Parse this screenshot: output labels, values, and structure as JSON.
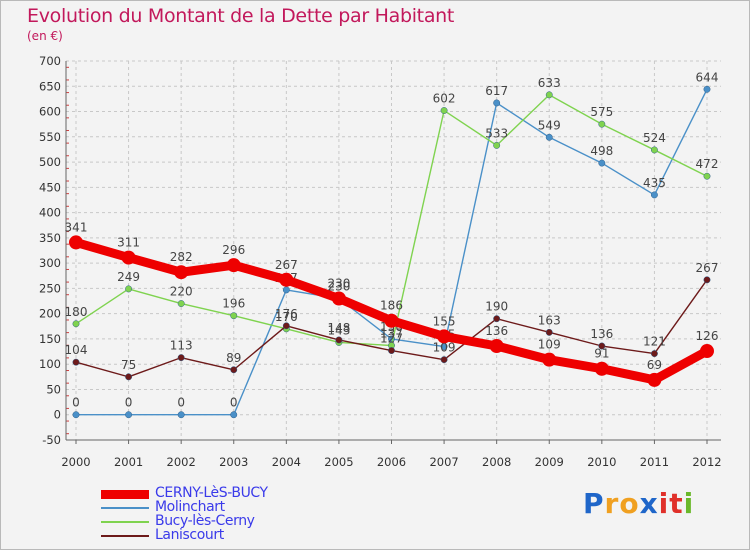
{
  "header": {
    "title": "Evolution du Montant de la Dette par Habitant",
    "unit": "(en €)"
  },
  "brand": {
    "text": "Proxiti",
    "letters": [
      "P",
      "r",
      "o",
      "x",
      "i",
      "t",
      "i"
    ],
    "colors": [
      "#1f66c9",
      "#f0a020",
      "#f0a020",
      "#1f66c9",
      "#e0302a",
      "#e0302a",
      "#6ab82a"
    ]
  },
  "chart_data": {
    "type": "line",
    "title": "Evolution du Montant de la Dette par Habitant",
    "ylabel": "(en €)",
    "xlabel": "",
    "categories": [
      "2000",
      "2001",
      "2002",
      "2003",
      "2004",
      "2005",
      "2006",
      "2007",
      "2008",
      "2009",
      "2010",
      "2011",
      "2012"
    ],
    "ylim": [
      -50,
      700
    ],
    "yticks": [
      -50,
      0,
      50,
      100,
      150,
      200,
      250,
      300,
      350,
      400,
      450,
      500,
      550,
      600,
      650,
      700
    ],
    "grid": true,
    "legend_position": "bottom-left",
    "series": [
      {
        "name": "CERNY-LèS-BUCY",
        "color": "#ee0000",
        "values": [
          341,
          311,
          282,
          296,
          267,
          230,
          186,
          155,
          136,
          109,
          91,
          69,
          126
        ]
      },
      {
        "name": "Molinchart",
        "color": "#4a90c8",
        "values": [
          0,
          0,
          0,
          0,
          247,
          230,
          150,
          135,
          617,
          549,
          498,
          435,
          644
        ]
      },
      {
        "name": "Bucy-lès-Cerny",
        "color": "#7fd34f",
        "values": [
          180,
          249,
          220,
          196,
          170,
          143,
          137,
          602,
          533,
          633,
          575,
          524,
          472
        ]
      },
      {
        "name": "Laniscourt",
        "color": "#6d1a1a",
        "values": [
          104,
          75,
          113,
          89,
          176,
          148,
          127,
          109,
          190,
          163,
          136,
          121,
          267
        ]
      }
    ]
  }
}
